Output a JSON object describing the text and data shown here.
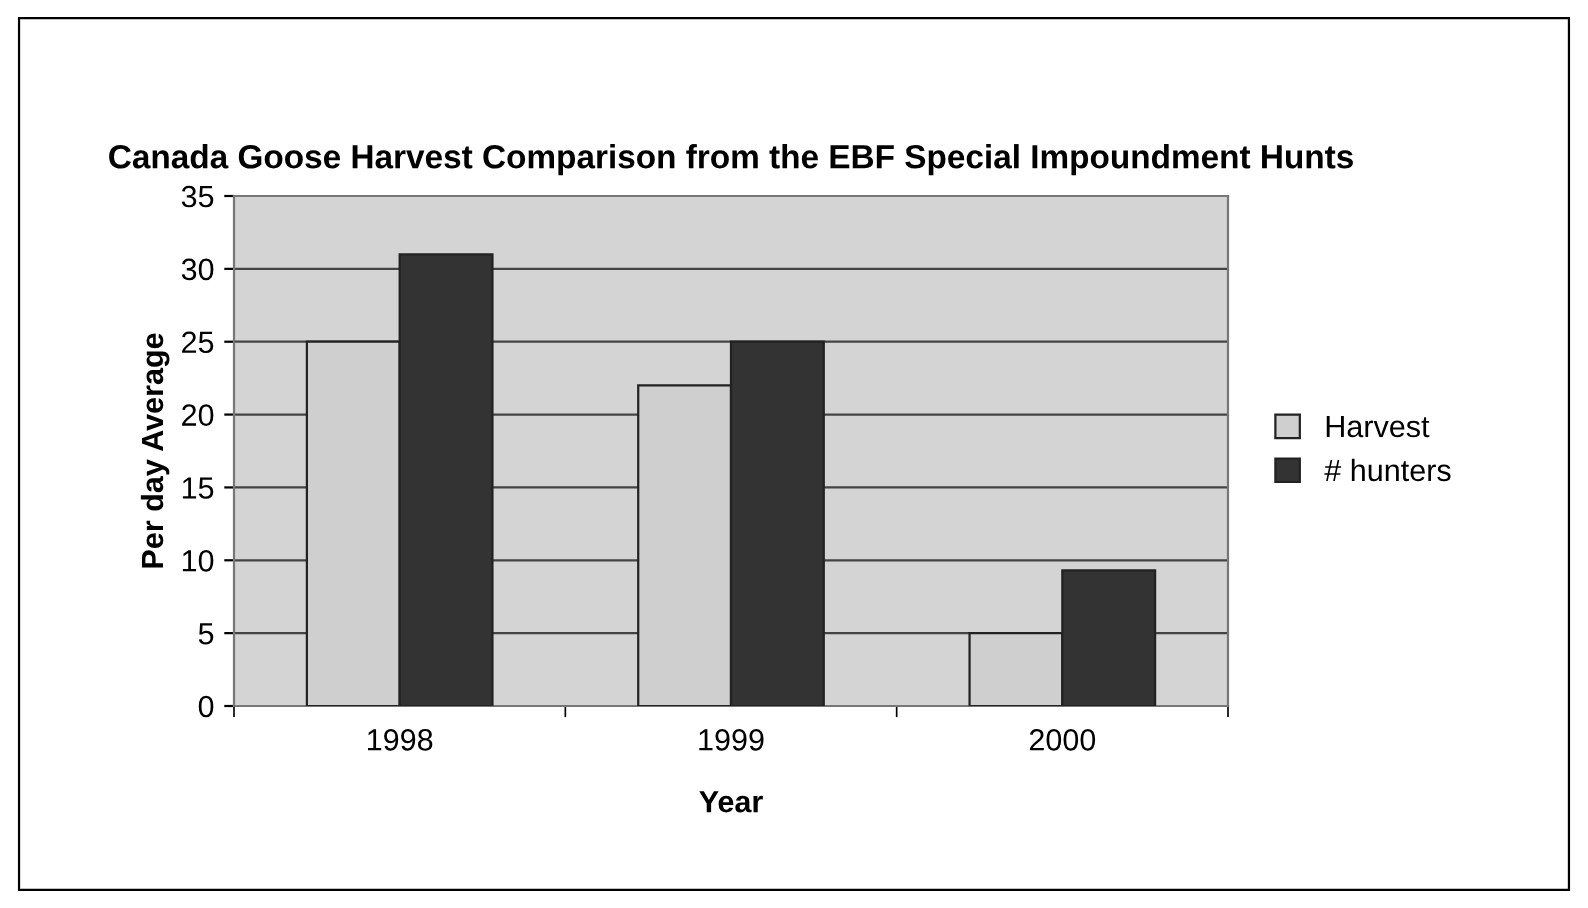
{
  "chart_data": {
    "type": "bar",
    "title": "Canada Goose Harvest Comparison from the EBF Special Impoundment Hunts",
    "xlabel": "Year",
    "ylabel": "Per day Average",
    "categories": [
      "1998",
      "1999",
      "2000"
    ],
    "series": [
      {
        "name": "Harvest",
        "color": "#cfcfcf",
        "values": [
          25,
          22,
          5
        ]
      },
      {
        "name": "# hunters",
        "color": "#333333",
        "values": [
          31,
          25,
          9.3
        ]
      }
    ],
    "ylim": [
      0,
      35
    ],
    "yticks": [
      0,
      5,
      10,
      15,
      20,
      25,
      30,
      35
    ],
    "grid": "y",
    "legend": "right"
  }
}
